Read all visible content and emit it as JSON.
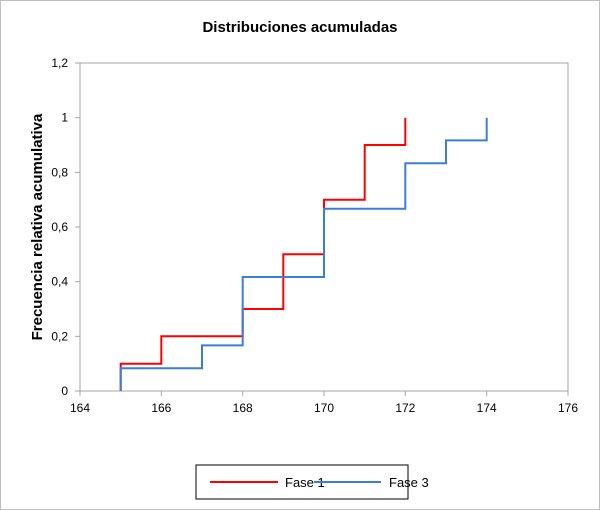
{
  "chart_data": {
    "type": "line",
    "step": true,
    "title": "Distribuciones acumuladas",
    "xlabel": "",
    "ylabel": "Frecuencia relativa acumulativa",
    "xlim": [
      164,
      176
    ],
    "ylim": [
      0,
      1.2
    ],
    "x_ticks": [
      164,
      166,
      168,
      170,
      172,
      174,
      176
    ],
    "x_tick_labels": [
      "164",
      "166",
      "168",
      "170",
      "172",
      "174",
      "176"
    ],
    "y_ticks": [
      0,
      0.2,
      0.4,
      0.6,
      0.8,
      1.0,
      1.2
    ],
    "y_tick_labels": [
      "0",
      "0,2",
      "0,4",
      "0,6",
      "0,8",
      "1",
      "1,2"
    ],
    "grid": false,
    "legend_position": "bottom",
    "series": [
      {
        "name": "Fase 1",
        "color": "#ff0000",
        "x": [
          165,
          165,
          166,
          166,
          168,
          168,
          169,
          169,
          170,
          170,
          171,
          171,
          172,
          172
        ],
        "y": [
          0,
          0.1,
          0.1,
          0.2,
          0.2,
          0.3,
          0.3,
          0.5,
          0.5,
          0.7,
          0.7,
          0.9,
          0.9,
          1.0
        ]
      },
      {
        "name": "Fase 3",
        "color": "#3b7ddd",
        "x": [
          165,
          165,
          167,
          167,
          168,
          168,
          170,
          170,
          172,
          172,
          173,
          173,
          174,
          174
        ],
        "y": [
          0,
          0.083,
          0.083,
          0.167,
          0.167,
          0.417,
          0.417,
          0.667,
          0.667,
          0.833,
          0.833,
          0.917,
          0.917,
          1.0
        ]
      }
    ]
  }
}
